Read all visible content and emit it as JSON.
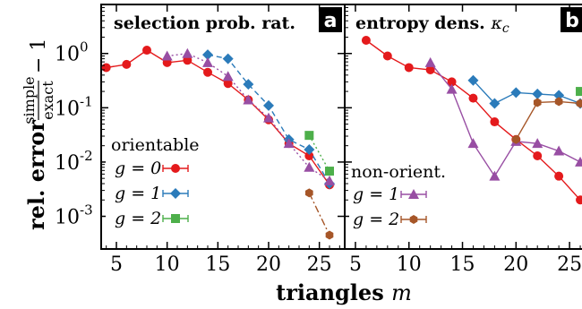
{
  "chart_data": [
    {
      "type": "line",
      "panel_label": "a",
      "title": "selection prob. rat.",
      "xlabel": "triangles m",
      "ylabel": "rel. error simple/exact − 1",
      "xlim": [
        3.5,
        27.5
      ],
      "ylim": [
        0.00025,
        8
      ],
      "y_scale": "log",
      "x_ticks": [
        "5",
        "10",
        "15",
        "20",
        "25"
      ],
      "y_ticks": [
        "10^0",
        "10^-1",
        "10^-2",
        "10^-3"
      ],
      "legend_title": "orientable",
      "series": [
        {
          "name": "g = 0",
          "color": "#e41a1c",
          "marker": "circle",
          "dash": "",
          "x": [
            4,
            6,
            8,
            10,
            12,
            14,
            16,
            18,
            20,
            22,
            24,
            26
          ],
          "y": [
            0.55,
            0.63,
            1.15,
            0.68,
            0.75,
            0.45,
            0.28,
            0.14,
            0.06,
            0.022,
            0.013,
            0.0038
          ]
        },
        {
          "name": "g = 1",
          "color": "#2b7bba",
          "marker": "diamond",
          "dash": "6,4",
          "x": [
            14,
            16,
            18,
            20,
            22,
            24,
            26
          ],
          "y": [
            0.95,
            0.8,
            0.27,
            0.11,
            0.026,
            0.017,
            0.004
          ]
        },
        {
          "name": "g = 2",
          "color": "#4daf4a",
          "marker": "square",
          "dash": "2,3",
          "x": [
            24,
            26
          ],
          "y": [
            0.031,
            0.0068
          ]
        },
        {
          "name": "g = 1 (non-orient.)",
          "color": "#984ea3",
          "marker": "triangle",
          "dash": "2,3",
          "x": [
            10,
            12,
            14,
            16,
            18,
            20,
            22,
            24,
            26
          ],
          "y": [
            0.9,
            1.0,
            0.68,
            0.38,
            0.14,
            0.065,
            0.022,
            0.008,
            0.0045
          ]
        },
        {
          "name": "g = 2 (non-orient.)",
          "color": "#a65628",
          "marker": "hexagon",
          "dash": "8,3,2,3",
          "x": [
            24,
            26
          ],
          "y": [
            0.0027,
            0.00045
          ]
        }
      ]
    },
    {
      "type": "line",
      "panel_label": "b",
      "title": "entropy dens. κc",
      "xlabel": "triangles m",
      "xlim": [
        4,
        27
      ],
      "ylim": [
        0.00025,
        8
      ],
      "y_scale": "log",
      "x_ticks": [
        "5",
        "10",
        "15",
        "20",
        "25"
      ],
      "legend_title": "non-orient.",
      "series": [
        {
          "name": "g = 0",
          "color": "#e41a1c",
          "marker": "circle",
          "dash": "",
          "x": [
            6,
            8,
            10,
            12,
            14,
            16,
            18,
            20,
            22,
            24,
            26
          ],
          "y": [
            1.75,
            0.9,
            0.55,
            0.5,
            0.3,
            0.15,
            0.055,
            0.026,
            0.013,
            0.0055,
            0.002
          ]
        },
        {
          "name": "g = 1",
          "color": "#2b7bba",
          "marker": "diamond",
          "dash": "",
          "x": [
            16,
            18,
            20,
            22,
            24,
            26
          ],
          "y": [
            0.32,
            0.12,
            0.19,
            0.18,
            0.17,
            0.12
          ]
        },
        {
          "name": "g = 2",
          "color": "#4daf4a",
          "marker": "square",
          "dash": "",
          "x": [
            26
          ],
          "y": [
            0.2
          ]
        },
        {
          "name": "g = 1 (non-orient.)",
          "color": "#984ea3",
          "marker": "triangle",
          "dash": "",
          "x": [
            12,
            14,
            16,
            18,
            20,
            22,
            24,
            26
          ],
          "y": [
            0.68,
            0.22,
            0.022,
            0.0055,
            0.024,
            0.022,
            0.016,
            0.01
          ]
        },
        {
          "name": "g = 2 (non-orient.)",
          "color": "#a65628",
          "marker": "hexagon",
          "dash": "",
          "x": [
            20,
            22,
            24,
            26
          ],
          "y": [
            0.026,
            0.125,
            0.13,
            0.12
          ]
        }
      ]
    }
  ],
  "legend": {
    "orientable_title": "orientable",
    "nonorient_title": "non-orient.",
    "g0": "g = 0",
    "g1": "g = 1",
    "g2": "g = 2"
  },
  "labels": {
    "xlabel_word": "triangles",
    "xlabel_var": "m",
    "ylabel_word": "rel. error",
    "ylabel_num": "simple",
    "ylabel_den": "exact",
    "ylabel_suffix": "− 1",
    "panel_a_title": "selection prob. rat.",
    "panel_b_title_word": "entropy dens.",
    "panel_b_title_sym": "κ",
    "panel_b_title_sub": "c",
    "badge_a": "a",
    "badge_b": "b"
  }
}
